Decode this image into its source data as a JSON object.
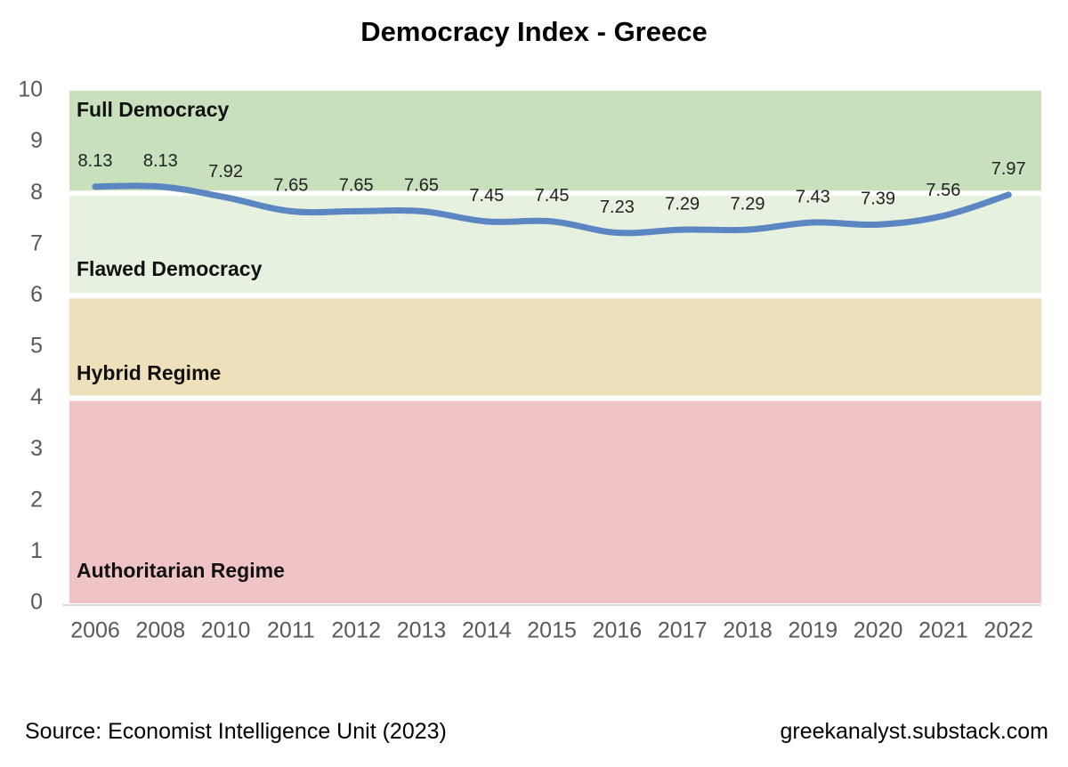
{
  "chart_data": {
    "type": "line",
    "title": "Democracy Index - Greece",
    "xlabel": "",
    "ylabel": "",
    "categories": [
      "2006",
      "2008",
      "2010",
      "2011",
      "2012",
      "2013",
      "2014",
      "2015",
      "2016",
      "2017",
      "2018",
      "2019",
      "2020",
      "2021",
      "2022"
    ],
    "series": [
      {
        "values": [
          8.13,
          8.13,
          7.92,
          7.65,
          7.65,
          7.65,
          7.45,
          7.45,
          7.23,
          7.29,
          7.29,
          7.43,
          7.39,
          7.56,
          7.97
        ],
        "color": "#5b86c2"
      }
    ],
    "data_labels": [
      "8.13",
      "8.13",
      "7.92",
      "7.65",
      "7.65",
      "7.65",
      "7.45",
      "7.45",
      "7.23",
      "7.29",
      "7.29",
      "7.43",
      "7.39",
      "7.56",
      "7.97"
    ],
    "ylim": [
      0,
      10
    ],
    "yticks": [
      0,
      1,
      2,
      3,
      4,
      5,
      6,
      7,
      8,
      9,
      10
    ],
    "bands": [
      {
        "label": "Full Democracy",
        "from": 8,
        "to": 10,
        "color": "#c9e0bc"
      },
      {
        "label": "Flawed Democracy",
        "from": 6,
        "to": 8,
        "color": "#e6f2df"
      },
      {
        "label": "Hybrid Regime",
        "from": 4,
        "to": 6,
        "color": "#ede0bb"
      },
      {
        "label": "Authoritarian Regime",
        "from": 0,
        "to": 4,
        "color": "#f0c3c4"
      }
    ],
    "grid": false,
    "legend": "none"
  },
  "footer": {
    "source": "Source: Economist Intelligence Unit (2023)",
    "credit": "greekanalyst.substack.com"
  }
}
